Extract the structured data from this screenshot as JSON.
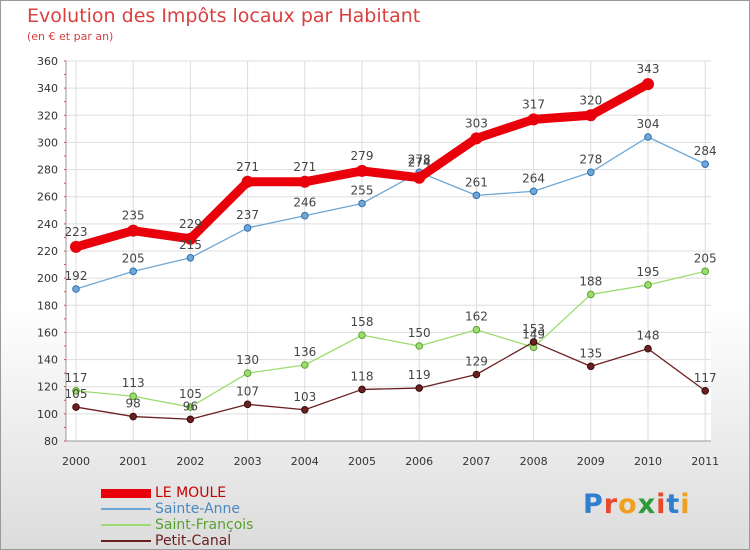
{
  "header": {
    "title": "Evolution des Impôts locaux par Habitant",
    "subtitle": "(en € et par an)"
  },
  "logo": {
    "text": "Proxiti",
    "colors": [
      "#2e7fd0",
      "#e8492c",
      "#f0a020",
      "#2e9a3c",
      "#e8492c",
      "#2e7fd0",
      "#f0a020"
    ]
  },
  "chart_data": {
    "type": "line",
    "title": "Evolution des Impôts locaux par Habitant",
    "subtitle": "(en € et par an)",
    "x": [
      "2000",
      "2001",
      "2002",
      "2003",
      "2004",
      "2005",
      "2006",
      "2007",
      "2008",
      "2009",
      "2010",
      "2011"
    ],
    "ylim": [
      80,
      360
    ],
    "yticks": [
      80,
      100,
      120,
      140,
      160,
      180,
      200,
      220,
      240,
      260,
      280,
      300,
      320,
      340,
      360
    ],
    "grid": true,
    "legend_position": "bottom-left",
    "series": [
      {
        "name": "LE MOULE",
        "color": "#e8000b",
        "emphasis": true,
        "values": [
          223,
          235,
          229,
          271,
          271,
          279,
          274,
          303,
          317,
          320,
          343,
          null
        ]
      },
      {
        "name": "Sainte-Anne",
        "color": "#6fa8d6",
        "emphasis": false,
        "values": [
          192,
          205,
          215,
          237,
          246,
          255,
          278,
          261,
          264,
          278,
          304,
          284
        ]
      },
      {
        "name": "Saint-François",
        "color": "#9ddc70",
        "emphasis": false,
        "values": [
          117,
          113,
          105,
          130,
          136,
          158,
          150,
          162,
          149,
          188,
          195,
          205
        ]
      },
      {
        "name": "Petit-Canal",
        "color": "#6b2020",
        "emphasis": false,
        "values": [
          105,
          98,
          96,
          107,
          103,
          118,
          119,
          129,
          153,
          135,
          148,
          117
        ]
      }
    ]
  }
}
